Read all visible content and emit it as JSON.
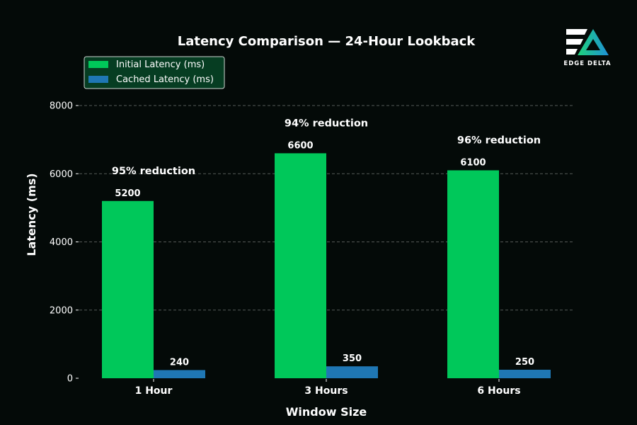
{
  "chart_data": {
    "type": "bar",
    "title": "Latency Comparison — 24-Hour Lookback",
    "xlabel": "Window Size",
    "ylabel": "Latency (ms)",
    "categories": [
      "1 Hour",
      "3 Hours",
      "6 Hours"
    ],
    "series": [
      {
        "name": "Initial Latency (ms)",
        "values": [
          5200,
          6600,
          6100
        ],
        "color": "#00c85a"
      },
      {
        "name": "Cached Latency (ms)",
        "values": [
          240,
          350,
          250
        ],
        "color": "#1f77b4"
      }
    ],
    "data_labels": {
      "Initial Latency (ms)": [
        "5200",
        "6600",
        "6100"
      ],
      "Cached Latency (ms)": [
        "240",
        "350",
        "250"
      ]
    },
    "annotations": [
      "95% reduction",
      "94% reduction",
      "96% reduction"
    ],
    "ylim": [
      0,
      8000
    ],
    "yticks": [
      0,
      2000,
      4000,
      6000,
      8000
    ],
    "grid": "horizontal-dashed",
    "legend_position": "top-left"
  },
  "logo": {
    "text": "EDGE DELTA"
  },
  "colors": {
    "background": "#040a08",
    "text": "#ffffff",
    "grid": "#555a57",
    "legend_bg": "#063d22"
  }
}
